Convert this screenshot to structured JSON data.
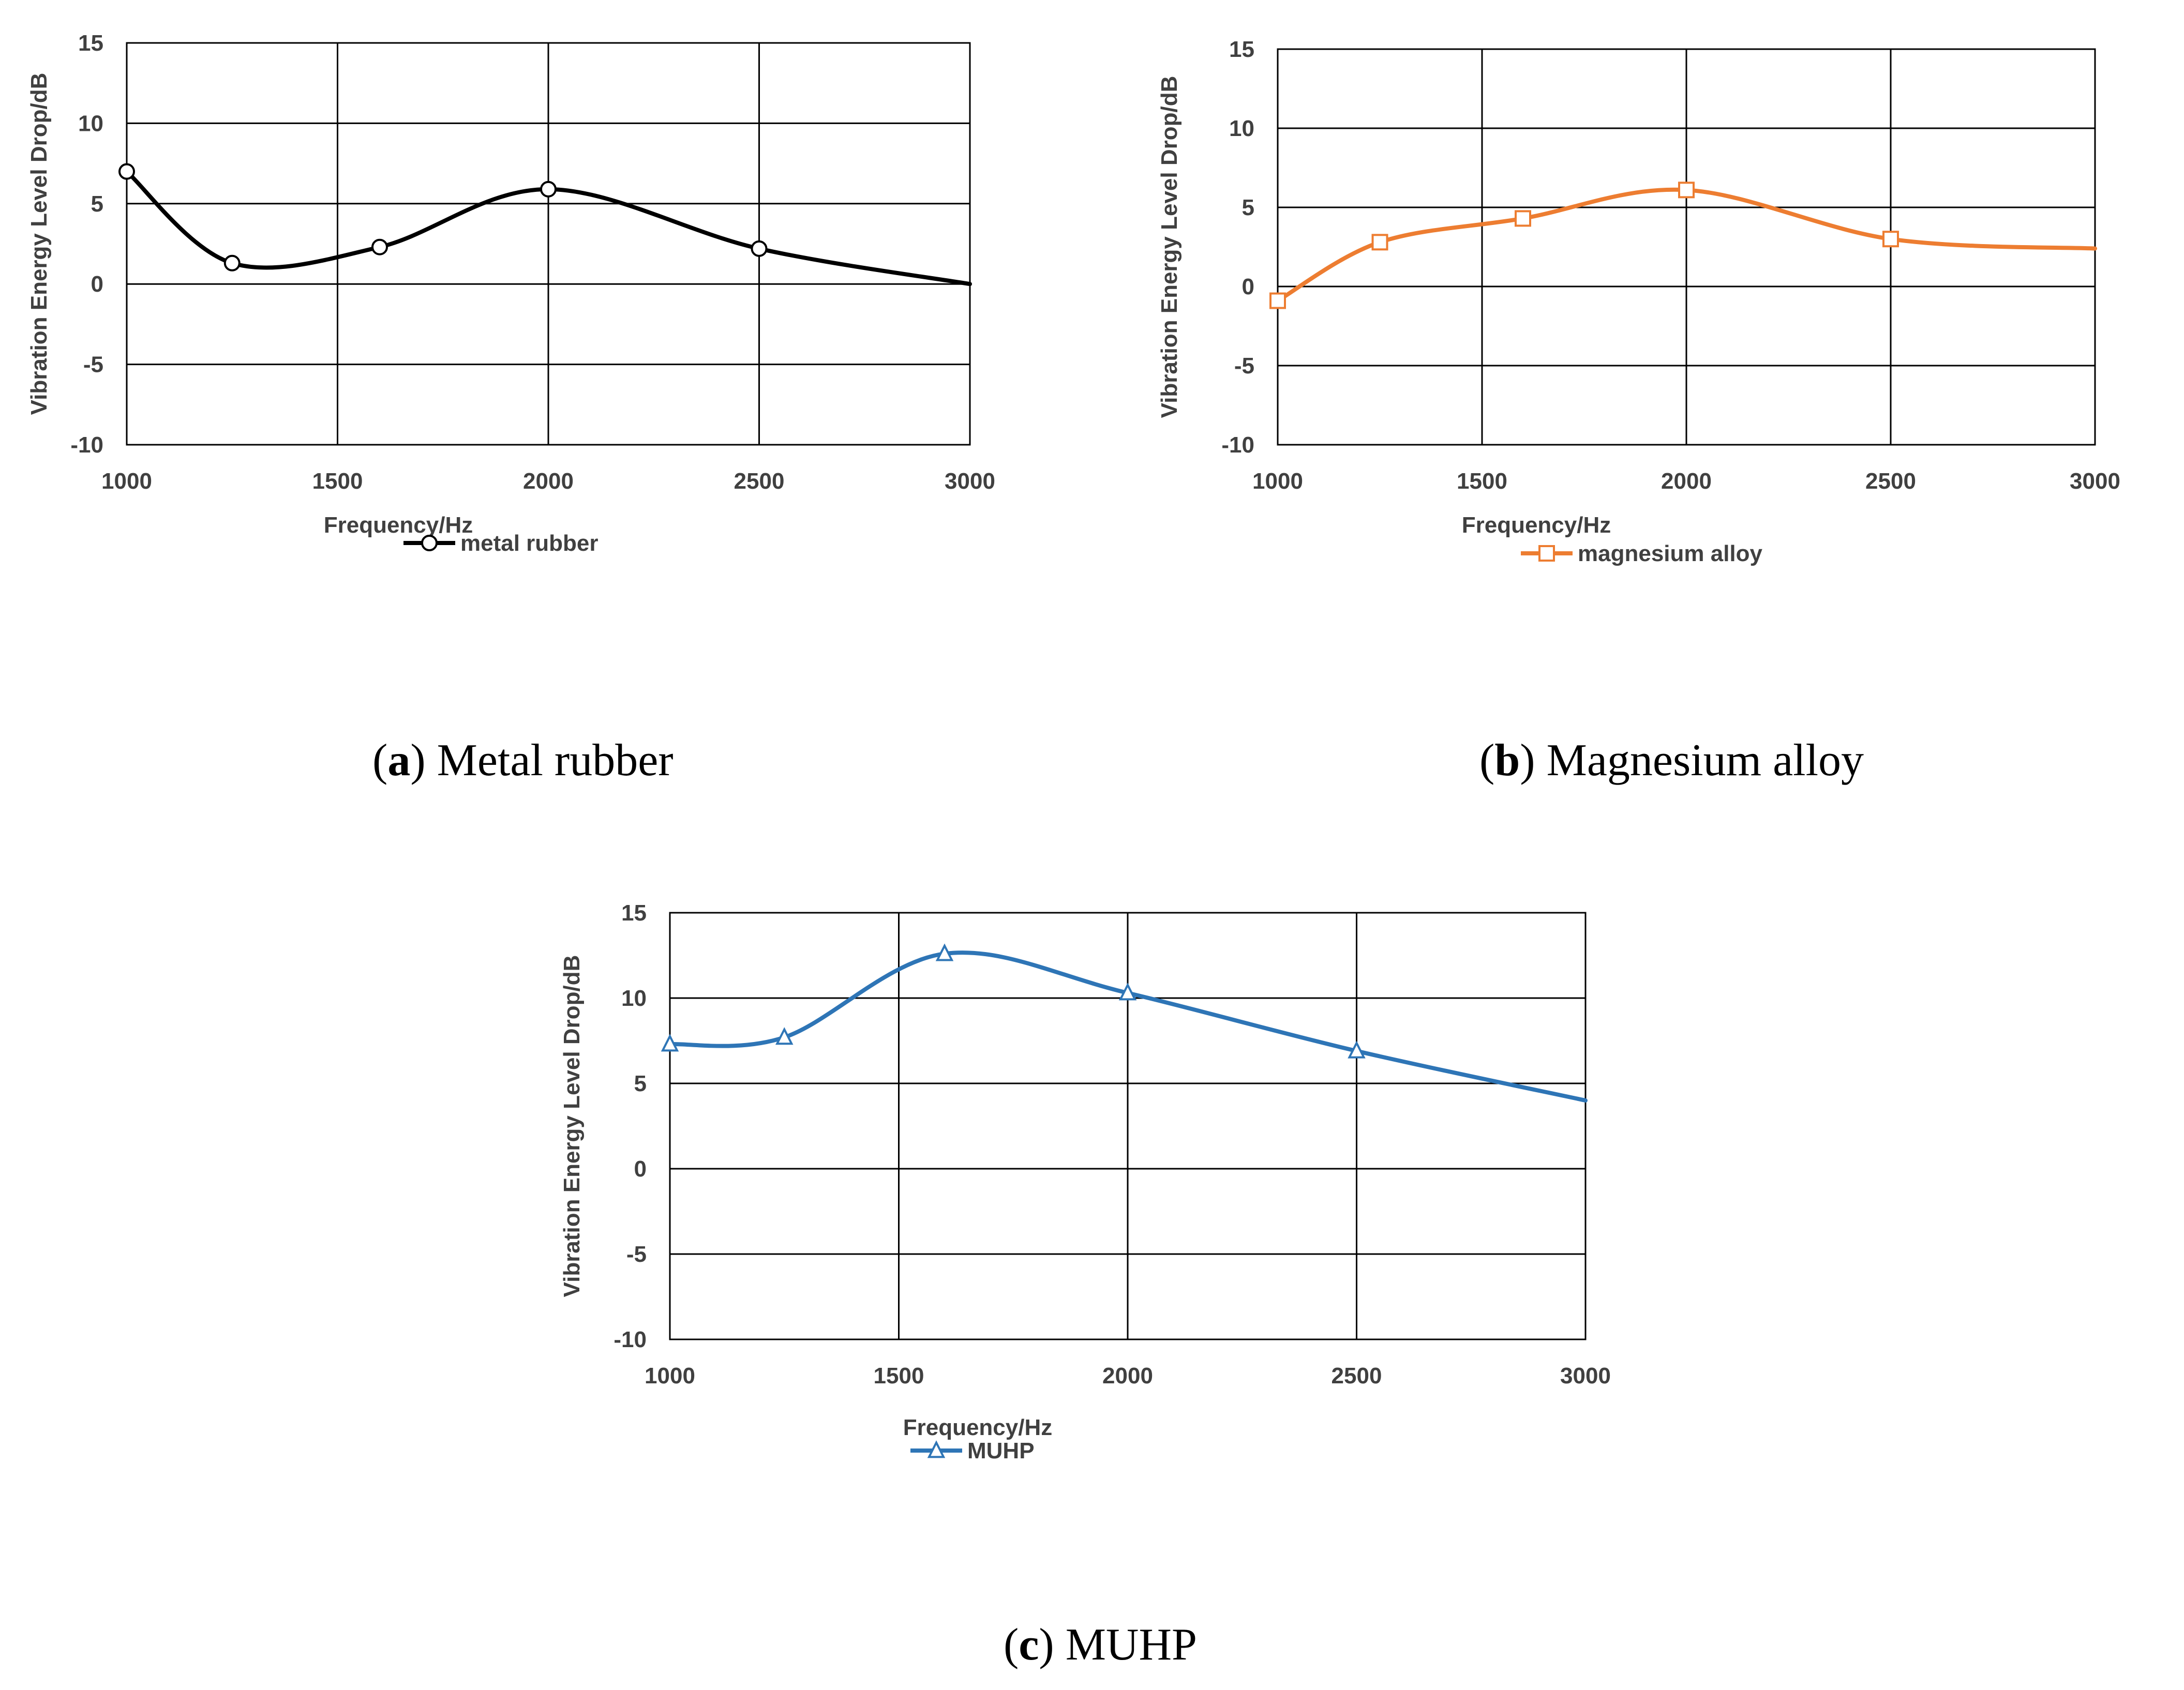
{
  "figures": [
    {
      "caption": {
        "tag": "a",
        "text": "Metal rubber"
      },
      "chart_data": {
        "type": "line",
        "title": "",
        "xlabel": "Frequency/Hz",
        "ylabel": "Vibration Energy Level Drop/dB",
        "xlim": [
          1000,
          3000
        ],
        "ylim": [
          -10,
          15
        ],
        "xticks": [
          1000,
          1500,
          2000,
          2500,
          3000
        ],
        "yticks": [
          -10,
          -5,
          0,
          5,
          10,
          15
        ],
        "grid": true,
        "legend_position": "bottom",
        "smooth": true,
        "series": [
          {
            "name": "metal rubber",
            "color": "#000000",
            "marker": "circle",
            "x": [
              1000,
              1250,
              1600,
              2000,
              2500,
              3000
            ],
            "y": [
              7.0,
              1.3,
              2.3,
              5.9,
              2.2,
              0.0
            ],
            "marked": [
              true,
              true,
              true,
              true,
              true,
              false
            ]
          }
        ]
      }
    },
    {
      "caption": {
        "tag": "b",
        "text": "Magnesium alloy"
      },
      "chart_data": {
        "type": "line",
        "title": "",
        "xlabel": "Frequency/Hz",
        "ylabel": "Vibration Energy Level Drop/dB",
        "xlim": [
          1000,
          3000
        ],
        "ylim": [
          -10,
          15
        ],
        "xticks": [
          1000,
          1500,
          2000,
          2500,
          3000
        ],
        "yticks": [
          -10,
          -5,
          0,
          5,
          10,
          15
        ],
        "grid": true,
        "legend_position": "bottom",
        "smooth": true,
        "series": [
          {
            "name": "magnesium alloy",
            "color": "#ED7D31",
            "marker": "square",
            "x": [
              1000,
              1250,
              1600,
              2000,
              2500,
              3000
            ],
            "y": [
              -0.9,
              2.8,
              4.3,
              6.1,
              3.0,
              2.4
            ],
            "marked": [
              true,
              true,
              true,
              true,
              true,
              false
            ]
          }
        ]
      }
    },
    {
      "caption": {
        "tag": "c",
        "text": "MUHP"
      },
      "chart_data": {
        "type": "line",
        "title": "",
        "xlabel": "Frequency/Hz",
        "ylabel": "Vibration Energy Level Drop/dB",
        "xlim": [
          1000,
          3000
        ],
        "ylim": [
          -10,
          15
        ],
        "xticks": [
          1000,
          1500,
          2000,
          2500,
          3000
        ],
        "yticks": [
          -10,
          -5,
          0,
          5,
          10,
          15
        ],
        "grid": true,
        "legend_position": "bottom",
        "smooth": true,
        "series": [
          {
            "name": "MUHP",
            "color": "#2E75B6",
            "marker": "triangle",
            "x": [
              1000,
              1250,
              1600,
              2000,
              2500,
              3000
            ],
            "y": [
              7.3,
              7.7,
              12.6,
              10.3,
              6.9,
              4.0
            ],
            "marked": [
              true,
              true,
              true,
              true,
              true,
              false
            ]
          }
        ]
      }
    }
  ]
}
